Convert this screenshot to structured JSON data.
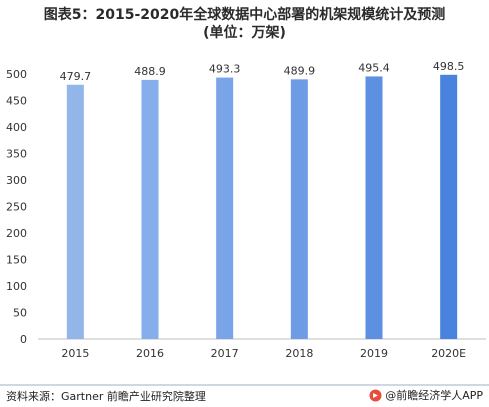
{
  "title_line1": "图表5：2015-2020年全球数据中心部署的机架规模统计及预测",
  "title_line2": "(单位：万架)",
  "chart_data": {
    "type": "bar",
    "categories": [
      "2015",
      "2016",
      "2017",
      "2018",
      "2019",
      "2020E"
    ],
    "values": [
      479.7,
      488.9,
      493.3,
      489.9,
      495.4,
      498.5
    ],
    "value_labels": [
      "479.7",
      "488.9",
      "493.3",
      "489.9",
      "495.4",
      "498.5"
    ],
    "bar_colors": [
      "#92b6ea",
      "#86aeea",
      "#7aa4e8",
      "#6d9be6",
      "#5d8fe2",
      "#4a82df"
    ],
    "ylim": [
      0,
      500
    ],
    "yticks": [
      0,
      50,
      100,
      150,
      200,
      250,
      300,
      350,
      400,
      450,
      500
    ],
    "ytick_labels": [
      "0",
      "50",
      "100",
      "150",
      "200",
      "250",
      "300",
      "350",
      "400",
      "450",
      "500"
    ],
    "grid": false,
    "legend": "none"
  },
  "footer": {
    "source": "资料来源：Gartner 前瞻产业研究院整理",
    "brand": "@前瞻经济学人APP"
  }
}
